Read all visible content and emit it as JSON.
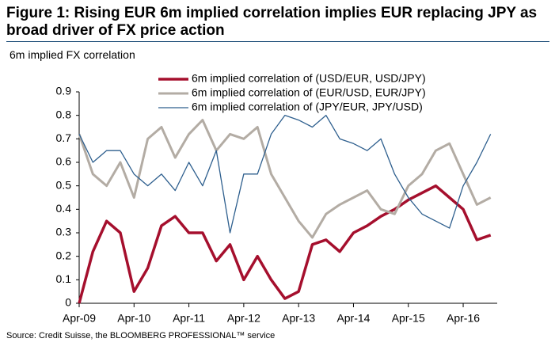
{
  "chart_data": {
    "type": "line",
    "title": "Figure 1: Rising EUR 6m implied correlation implies EUR replacing JPY as broad driver of FX price action",
    "subtitle": "6m implied FX correlation",
    "source": "Source: Credit Suisse, the BLOOMBERG PROFESSIONAL™ service",
    "x": [
      2009.25,
      2009.5,
      2009.75,
      2010,
      2010.25,
      2010.5,
      2010.75,
      2011,
      2011.25,
      2011.5,
      2011.75,
      2012,
      2012.25,
      2012.5,
      2012.75,
      2013,
      2013.25,
      2013.5,
      2013.75,
      2014,
      2014.25,
      2014.5,
      2014.75,
      2015,
      2015.25,
      2015.5,
      2015.75,
      2016,
      2016.25,
      2016.5,
      2016.75
    ],
    "series": [
      {
        "name": "6m implied correlation of (USD/EUR, USD/JPY)",
        "color": "#a50f2d",
        "width": 3.5,
        "values": [
          0,
          0.22,
          0.35,
          0.3,
          0.05,
          0.15,
          0.33,
          0.37,
          0.3,
          0.3,
          0.18,
          0.25,
          0.1,
          0.2,
          0.1,
          0.02,
          0.05,
          0.25,
          0.27,
          0.22,
          0.3,
          0.33,
          0.37,
          0.4,
          0.44,
          0.47,
          0.5,
          0.45,
          0.4,
          0.27,
          0.29
        ]
      },
      {
        "name": "6m implied correlation of (EUR/USD, EUR/JPY)",
        "color": "#b3aca4",
        "width": 3,
        "values": [
          0.72,
          0.55,
          0.5,
          0.6,
          0.45,
          0.7,
          0.75,
          0.62,
          0.72,
          0.78,
          0.65,
          0.72,
          0.7,
          0.75,
          0.55,
          0.45,
          0.35,
          0.28,
          0.38,
          0.42,
          0.45,
          0.48,
          0.4,
          0.38,
          0.5,
          0.55,
          0.65,
          0.68,
          0.55,
          0.42,
          0.45
        ]
      },
      {
        "name": "6m implied correlation of (JPY/EUR, JPY/USD)",
        "color": "#2e5f8e",
        "width": 1.3,
        "values": [
          0.72,
          0.6,
          0.65,
          0.65,
          0.55,
          0.5,
          0.55,
          0.48,
          0.6,
          0.5,
          0.65,
          0.3,
          0.55,
          0.55,
          0.72,
          0.8,
          0.78,
          0.75,
          0.8,
          0.7,
          0.68,
          0.65,
          0.7,
          0.55,
          0.45,
          0.38,
          0.35,
          0.32,
          0.5,
          0.6,
          0.72
        ]
      }
    ],
    "xlim": [
      2009.25,
      2016.87
    ],
    "xticks": [
      {
        "value": 2009.25,
        "label": "Apr-09"
      },
      {
        "value": 2010.25,
        "label": "Apr-10"
      },
      {
        "value": 2011.25,
        "label": "Apr-11"
      },
      {
        "value": 2012.25,
        "label": "Apr-12"
      },
      {
        "value": 2013.25,
        "label": "Apr-13"
      },
      {
        "value": 2014.25,
        "label": "Apr-14"
      },
      {
        "value": 2015.25,
        "label": "Apr-15"
      },
      {
        "value": 2016.25,
        "label": "Apr-16"
      }
    ],
    "ylim": [
      0,
      0.9
    ],
    "yticks": [
      0,
      0.1,
      0.2,
      0.3,
      0.4,
      0.5,
      0.6,
      0.7,
      0.8,
      0.9
    ],
    "grid": false
  }
}
